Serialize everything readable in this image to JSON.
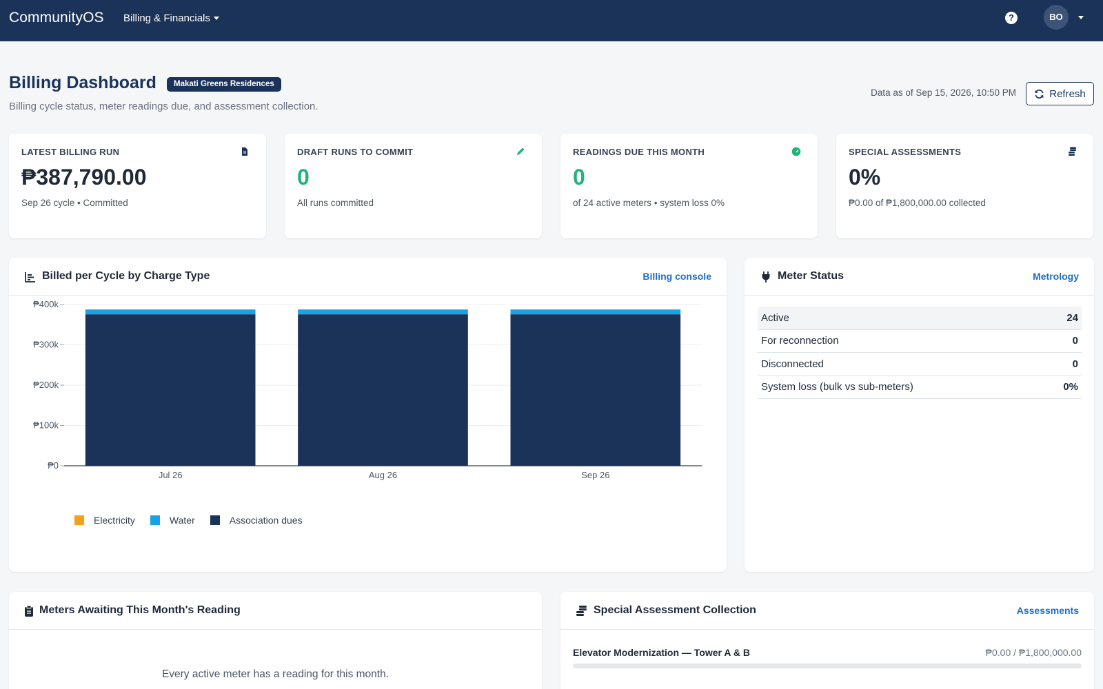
{
  "nav": {
    "brand": "CommunityOS",
    "menu_label": "Billing & Financials",
    "help": "?",
    "avatar_initials": "BO"
  },
  "header": {
    "title": "Billing Dashboard",
    "community_badge": "Makati Greens Residences",
    "subtitle": "Billing cycle status, meter readings due, and assessment collection.",
    "data_as_of": "Data as of Sep 15, 2026, 10:50 PM",
    "refresh_label": "Refresh"
  },
  "kpis": [
    {
      "label": "LATEST BILLING RUN",
      "value": "₱387,790.00",
      "sub": "Sep 26 cycle • Committed",
      "icon": "document-icon",
      "accent": "#1b3358"
    },
    {
      "label": "DRAFT RUNS TO COMMIT",
      "value": "0",
      "sub": "All runs committed",
      "icon": "pencil-icon",
      "accent": "#22b37a"
    },
    {
      "label": "READINGS DUE THIS MONTH",
      "value": "0",
      "sub": "of 24 active meters • system loss 0%",
      "icon": "gauge-icon",
      "accent": "#22b37a"
    },
    {
      "label": "SPECIAL ASSESSMENTS",
      "value": "0%",
      "sub": "₱0.00 of ₱1,800,000.00 collected",
      "icon": "coins-icon",
      "accent": "#1b3358"
    }
  ],
  "billing_panel": {
    "title": "Billed per Cycle by Charge Type",
    "link": "Billing console"
  },
  "chart_data": {
    "type": "bar",
    "stacked": true,
    "categories": [
      "Jul 26",
      "Aug 26",
      "Sep 26"
    ],
    "series": [
      {
        "name": "Electricity",
        "color": "#f5a01a",
        "values": [
          0,
          0,
          0
        ]
      },
      {
        "name": "Water",
        "color": "#19a3e6",
        "values": [
          12000,
          12000,
          12000
        ]
      },
      {
        "name": "Association dues",
        "color": "#1b3358",
        "values": [
          375790,
          375790,
          375790
        ]
      }
    ],
    "y_ticks": [
      "₱0",
      "₱100k",
      "₱200k",
      "₱300k",
      "₱400k"
    ],
    "ylim": [
      0,
      400000
    ],
    "grid": true,
    "legend_position": "bottom-left"
  },
  "meter_panel": {
    "title": "Meter Status",
    "link": "Metrology",
    "rows": [
      {
        "label": "Active",
        "value": "24"
      },
      {
        "label": "For reconnection",
        "value": "0"
      },
      {
        "label": "Disconnected",
        "value": "0"
      },
      {
        "label": "System loss (bulk vs sub-meters)",
        "value": "0%"
      }
    ]
  },
  "awaiting_panel": {
    "title": "Meters Awaiting This Month's Reading",
    "empty_message": "Every active meter has a reading for this month."
  },
  "assessment_panel": {
    "title": "Special Assessment Collection",
    "link": "Assessments",
    "items": [
      {
        "name": "Elevator Modernization — Tower A & B",
        "amount": "₱0.00 / ₱1,800,000.00",
        "progress": 0
      }
    ]
  }
}
